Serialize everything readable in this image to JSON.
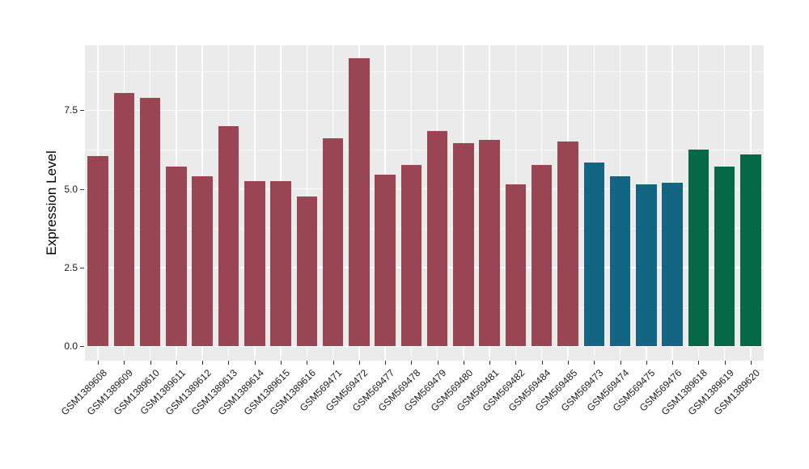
{
  "figure": {
    "background": "#FFFFFF",
    "panel_background": "#EBEBEB",
    "grid_color": "#FFFFFF"
  },
  "chart_data": {
    "type": "bar",
    "title": "",
    "xlabel": "",
    "ylabel": "Expression Level",
    "legend": "none",
    "grid": "on",
    "ylim": [
      0,
      9.6
    ],
    "categories": [
      "GSM1389608",
      "GSM1389609",
      "GSM1389610",
      "GSM1389611",
      "GSM1389612",
      "GSM1389613",
      "GSM1389614",
      "GSM1389615",
      "GSM1389616",
      "GSM569471",
      "GSM569472",
      "GSM569477",
      "GSM569478",
      "GSM569479",
      "GSM569480",
      "GSM569481",
      "GSM569482",
      "GSM569484",
      "GSM569485",
      "GSM569473",
      "GSM569474",
      "GSM569475",
      "GSM569476",
      "GSM1389618",
      "GSM1389619",
      "GSM1389620"
    ],
    "values": [
      6.05,
      8.05,
      7.9,
      5.7,
      5.4,
      7.0,
      5.25,
      5.25,
      4.75,
      6.6,
      9.15,
      5.45,
      5.75,
      6.85,
      6.45,
      6.55,
      5.15,
      5.75,
      6.5,
      5.85,
      5.4,
      5.15,
      5.2,
      6.25,
      5.7,
      6.1
    ],
    "color_groups": [
      {
        "color": "#9A4553",
        "from": 0,
        "to": 18
      },
      {
        "color": "#136581",
        "from": 19,
        "to": 22
      },
      {
        "color": "#056847",
        "from": 23,
        "to": 25
      }
    ],
    "y_axis": {
      "tick_labels": [
        "0.0",
        "2.5",
        "5.0",
        "7.5"
      ],
      "tick_values": [
        0,
        2.5,
        5.0,
        7.5
      ],
      "minor_tick_values": [
        1.25,
        3.75,
        6.25,
        8.75
      ]
    }
  }
}
